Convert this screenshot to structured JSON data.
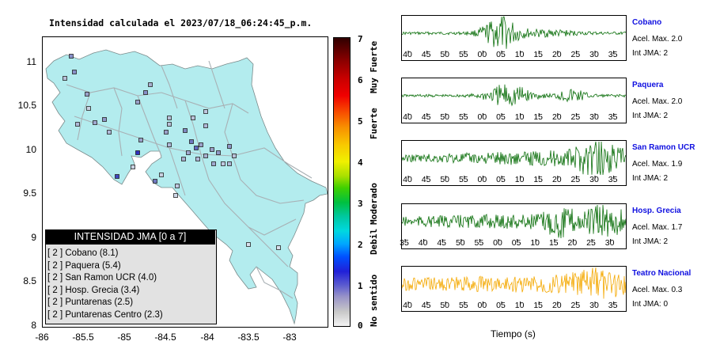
{
  "title": "Intensidad calculada el 2023/07/18_06:24:45_p.m.",
  "map": {
    "y_ticks": [
      "11",
      "10.5",
      "10",
      "9.5",
      "9",
      "8.5",
      "8"
    ],
    "x_ticks": [
      "-86",
      "-85.5",
      "-85",
      "-84.5",
      "-84",
      "-83.5",
      "-83"
    ],
    "ylim": [
      8,
      11.3
    ],
    "xlim": [
      -86,
      -82.55
    ],
    "land_color": "#b3ecee",
    "legend": {
      "header": "INTENSIDAD JMA [0 a 7]",
      "items": [
        "[ 2 ]  Cobano (8.1)",
        "[ 2 ]  Paquera (5.4)",
        "[ 2 ]  San Ramon UCR (4.0)",
        "[ 2 ]  Hosp. Grecia (3.4)",
        "[ 2 ]  Puntarenas (2.5)",
        "[ 2 ]  Puntarenas Centro (2.3)"
      ]
    }
  },
  "colorbar": {
    "numbers": [
      "7",
      "6",
      "5",
      "4",
      "3",
      "2",
      "1",
      "0"
    ],
    "words": [
      "Muy Fuerte",
      "Fuerte",
      "Moderado",
      "Debil",
      "No sentido"
    ]
  },
  "traces": {
    "xlabel": "Tiempo (s)",
    "stations": [
      {
        "name": "Cobano",
        "acel": "Acel. Max. 2.0",
        "jma": "Int JMA: 2",
        "color": "#0a6e0a",
        "ticks": [
          "40",
          "45",
          "50",
          "55",
          "00",
          "05",
          "10",
          "15",
          "20",
          "25",
          "30",
          "35"
        ],
        "offset": 8
      },
      {
        "name": "Paquera",
        "acel": "Acel. Max. 2.0",
        "jma": "Int JMA: 2",
        "color": "#0a6e0a",
        "ticks": [
          "40",
          "45",
          "50",
          "55",
          "00",
          "05",
          "10",
          "15",
          "20",
          "25",
          "30",
          "35"
        ],
        "offset": 8
      },
      {
        "name": "San Ramon UCR",
        "acel": "Acel. Max. 1.9",
        "jma": "Int JMA: 2",
        "color": "#0a6e0a",
        "ticks": [
          "40",
          "45",
          "50",
          "55",
          "00",
          "05",
          "10",
          "15",
          "20",
          "25",
          "30",
          "35"
        ],
        "offset": 8
      },
      {
        "name": "Hosp. Grecia",
        "acel": "Acel. Max. 1.7",
        "jma": "Int JMA: 2",
        "color": "#0a6e0a",
        "ticks": [
          "35",
          "40",
          "45",
          "50",
          "55",
          "00",
          "05",
          "10",
          "15",
          "20",
          "25",
          "30"
        ],
        "offset": 4
      },
      {
        "name": "Teatro Nacional",
        "acel": "Acel. Max. 0.3",
        "jma": "Int JMA: 0",
        "color": "#f4a800",
        "ticks": [
          "40",
          "45",
          "50",
          "55",
          "00",
          "05",
          "10",
          "15",
          "20",
          "25",
          "30",
          "35"
        ],
        "offset": 8
      }
    ]
  }
}
